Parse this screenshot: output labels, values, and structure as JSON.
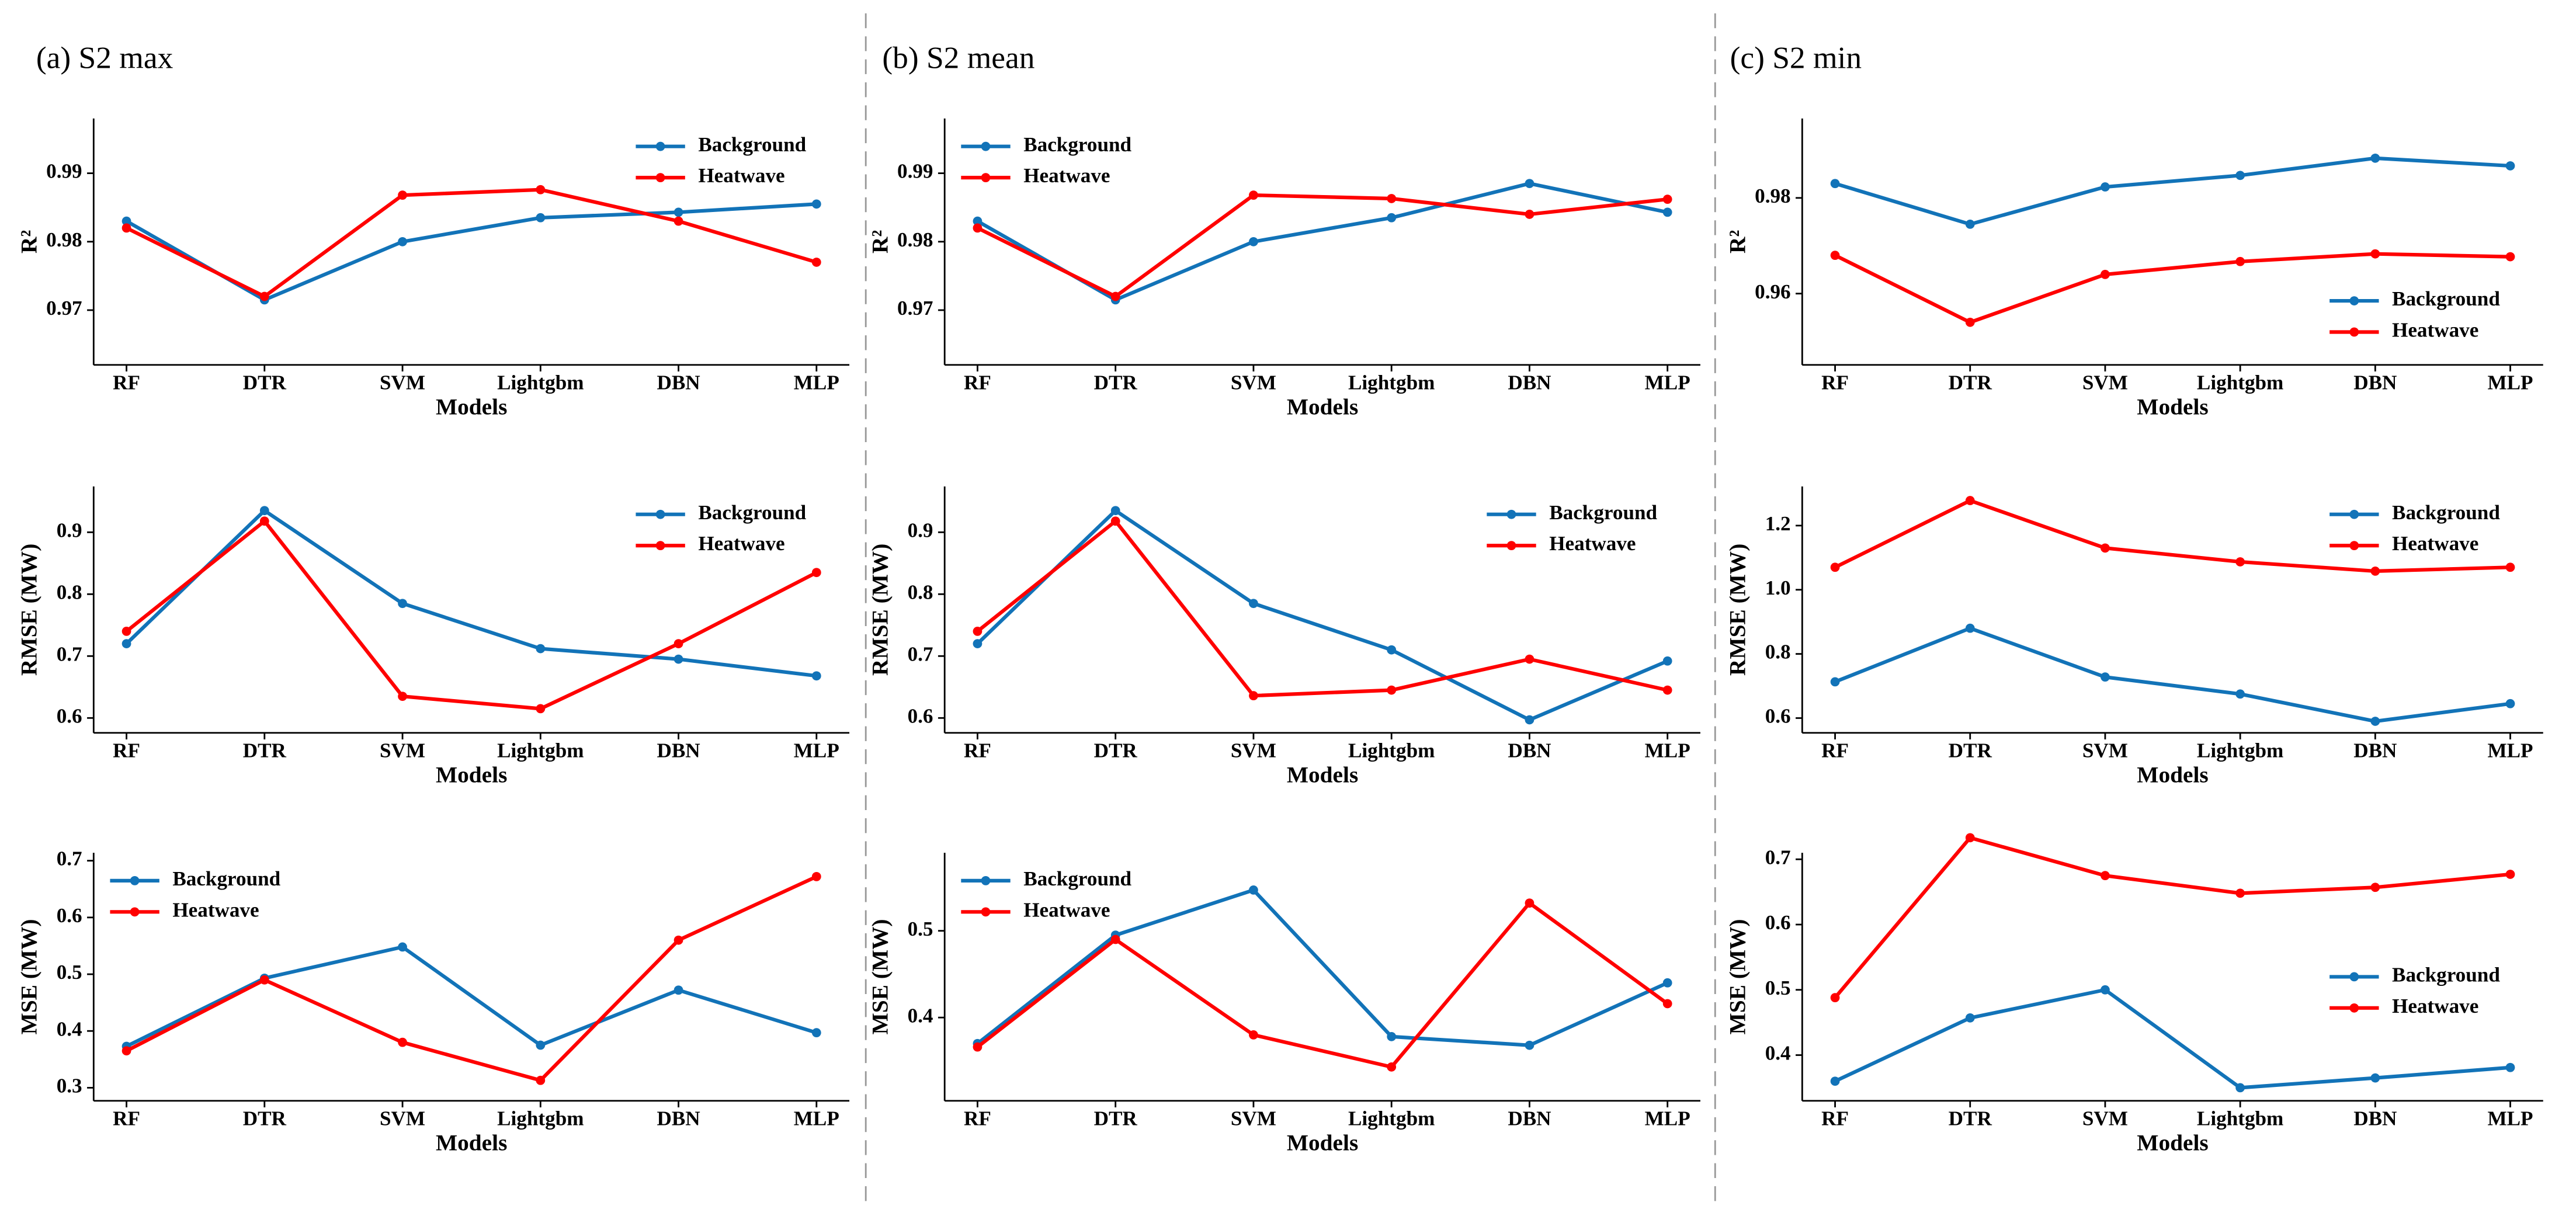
{
  "chart_data": [
    {
      "type": "line",
      "title": "(a) S2 max",
      "categories": [
        "RF",
        "DTR",
        "SVM",
        "Lightgbm",
        "DBN",
        "MLP"
      ],
      "x_label": "Models",
      "y_label": "R²",
      "ylim": [
        0.962,
        0.998
      ],
      "yticks": [
        0.97,
        0.98,
        0.99
      ],
      "legend": "upper right",
      "series": [
        {
          "name": "Background",
          "color": "#1273b8",
          "values": [
            0.983,
            0.9715,
            0.98,
            0.9835,
            0.9843,
            0.9855
          ]
        },
        {
          "name": "Heatwave",
          "color": "#ff0000",
          "values": [
            0.982,
            0.972,
            0.9868,
            0.9876,
            0.983,
            0.977
          ]
        }
      ]
    },
    {
      "type": "line",
      "title": "(b) S2 mean",
      "categories": [
        "RF",
        "DTR",
        "SVM",
        "Lightgbm",
        "DBN",
        "MLP"
      ],
      "x_label": "Models",
      "y_label": "R²",
      "ylim": [
        0.962,
        0.998
      ],
      "yticks": [
        0.97,
        0.98,
        0.99
      ],
      "legend": "upper left",
      "series": [
        {
          "name": "Background",
          "color": "#1273b8",
          "values": [
            0.983,
            0.9715,
            0.98,
            0.9835,
            0.9885,
            0.9843
          ]
        },
        {
          "name": "Heatwave",
          "color": "#ff0000",
          "values": [
            0.982,
            0.972,
            0.9868,
            0.9863,
            0.984,
            0.9862
          ]
        }
      ]
    },
    {
      "type": "line",
      "title": "(c) S2 min",
      "categories": [
        "RF",
        "DTR",
        "SVM",
        "Lightgbm",
        "DBN",
        "MLP"
      ],
      "x_label": "Models",
      "y_label": "R²",
      "ylim": [
        0.9451,
        0.9966
      ],
      "yticks": [
        0.96,
        0.98
      ],
      "legend": "lower right",
      "series": [
        {
          "name": "Background",
          "color": "#1273b8",
          "values": [
            0.983,
            0.9745,
            0.9823,
            0.9847,
            0.9883,
            0.9867
          ]
        },
        {
          "name": "Heatwave",
          "color": "#ff0000",
          "values": [
            0.968,
            0.954,
            0.964,
            0.9667,
            0.9683,
            0.9677
          ]
        }
      ]
    },
    {
      "type": "line",
      "categories": [
        "RF",
        "DTR",
        "SVM",
        "Lightgbm",
        "DBN",
        "MLP"
      ],
      "x_label": "Models",
      "y_label": "RMSE (MW)",
      "ylim": [
        0.576,
        0.974
      ],
      "yticks": [
        0.6,
        0.7,
        0.8,
        0.9
      ],
      "legend": "upper right",
      "series": [
        {
          "name": "Background",
          "color": "#1273b8",
          "values": [
            0.72,
            0.935,
            0.785,
            0.712,
            0.695,
            0.668
          ]
        },
        {
          "name": "Heatwave",
          "color": "#ff0000",
          "values": [
            0.74,
            0.918,
            0.635,
            0.615,
            0.72,
            0.835
          ]
        }
      ]
    },
    {
      "type": "line",
      "categories": [
        "RF",
        "DTR",
        "SVM",
        "Lightgbm",
        "DBN",
        "MLP"
      ],
      "x_label": "Models",
      "y_label": "RMSE (MW)",
      "ylim": [
        0.576,
        0.974
      ],
      "yticks": [
        0.6,
        0.7,
        0.8,
        0.9
      ],
      "legend": "upper right",
      "series": [
        {
          "name": "Background",
          "color": "#1273b8",
          "values": [
            0.72,
            0.935,
            0.785,
            0.71,
            0.597,
            0.692
          ]
        },
        {
          "name": "Heatwave",
          "color": "#ff0000",
          "values": [
            0.74,
            0.918,
            0.636,
            0.645,
            0.695,
            0.645
          ]
        }
      ]
    },
    {
      "type": "line",
      "categories": [
        "RF",
        "DTR",
        "SVM",
        "Lightgbm",
        "DBN",
        "MLP"
      ],
      "x_label": "Models",
      "y_label": "RMSE (MW)",
      "ylim": [
        0.554,
        1.322
      ],
      "yticks": [
        0.6,
        0.8,
        {
          "value": 1,
          "label": "1.0"
        },
        1.2
      ],
      "legend": "upper right",
      "series": [
        {
          "name": "Background",
          "color": "#1273b8",
          "values": [
            0.713,
            0.88,
            0.728,
            0.675,
            0.59,
            0.645
          ]
        },
        {
          "name": "Heatwave",
          "color": "#ff0000",
          "values": [
            1.07,
            1.278,
            1.13,
            1.087,
            1.058,
            1.07
          ]
        }
      ]
    },
    {
      "type": "line",
      "categories": [
        "RF",
        "DTR",
        "SVM",
        "Lightgbm",
        "DBN",
        "MLP"
      ],
      "x_label": "Models",
      "y_label": "MSE (MW)",
      "ylim": [
        0.277,
        0.714
      ],
      "yticks": [
        0.3,
        0.4,
        0.5,
        0.6,
        0.7
      ],
      "legend": "upper left",
      "series": [
        {
          "name": "Background",
          "color": "#1273b8",
          "values": [
            0.373,
            0.493,
            0.548,
            0.375,
            0.472,
            0.397
          ]
        },
        {
          "name": "Heatwave",
          "color": "#ff0000",
          "values": [
            0.365,
            0.49,
            0.38,
            0.313,
            0.56,
            0.672
          ]
        }
      ]
    },
    {
      "type": "line",
      "categories": [
        "RF",
        "DTR",
        "SVM",
        "Lightgbm",
        "DBN",
        "MLP"
      ],
      "x_label": "Models",
      "y_label": "MSE (MW)",
      "ylim": [
        0.304,
        0.59
      ],
      "yticks": [
        0.4,
        0.5
      ],
      "legend": "upper left",
      "series": [
        {
          "name": "Background",
          "color": "#1273b8",
          "values": [
            0.37,
            0.495,
            0.547,
            0.378,
            0.368,
            0.44
          ]
        },
        {
          "name": "Heatwave",
          "color": "#ff0000",
          "values": [
            0.366,
            0.49,
            0.38,
            0.343,
            0.532,
            0.416
          ]
        }
      ]
    },
    {
      "type": "line",
      "categories": [
        "RF",
        "DTR",
        "SVM",
        "Lightgbm",
        "DBN",
        "MLP"
      ],
      "x_label": "Models",
      "y_label": "MSE (MW)",
      "ylim": [
        0.33,
        0.71
      ],
      "yticks": [
        0.4,
        0.5,
        0.6,
        0.7
      ],
      "legend": "center right",
      "series": [
        {
          "name": "Background",
          "color": "#1273b8",
          "values": [
            0.36,
            0.457,
            0.5,
            0.35,
            0.365,
            0.381
          ]
        },
        {
          "name": "Heatwave",
          "color": "#ff0000",
          "values": [
            0.488,
            0.733,
            0.675,
            0.648,
            0.657,
            0.677
          ]
        }
      ]
    }
  ]
}
